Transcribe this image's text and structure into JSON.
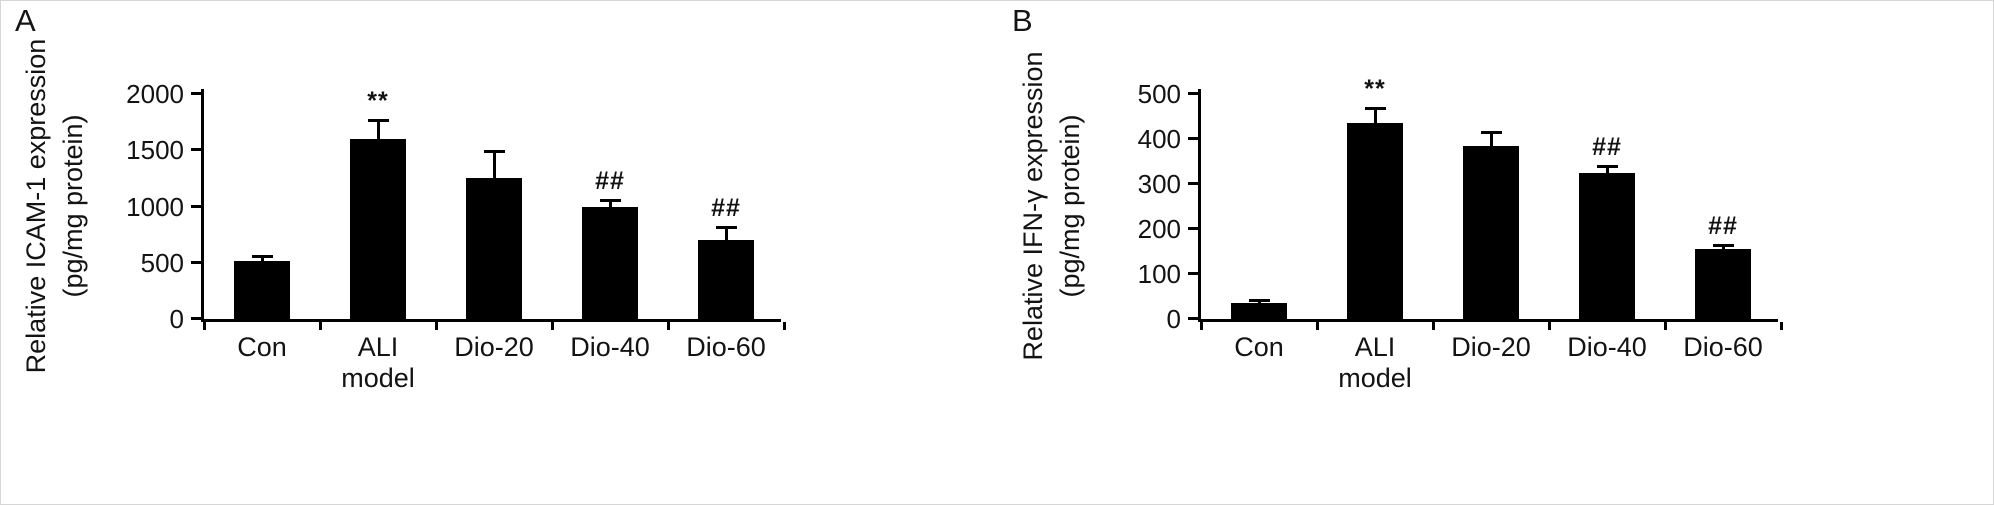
{
  "figure": {
    "background": "#ffffff",
    "axis_color": "#000000",
    "panels": [
      {
        "label": "A",
        "ylabel_lines": [
          "Relative ICAM-1 expression",
          "(pg/mg protein)"
        ]
      },
      {
        "label": "B",
        "ylabel_lines": [
          "Relative IFN-γ expression",
          "(pg/mg protein)"
        ]
      }
    ]
  },
  "chart_data": [
    {
      "type": "bar",
      "panel": "A",
      "title": "",
      "ylabel": "Relative ICAM-1 expression (pg/mg protein)",
      "xlabel": "",
      "categories": [
        "Con",
        "ALI model",
        "Dio-20",
        "Dio-40",
        "Dio-60"
      ],
      "values": [
        520,
        1600,
        1250,
        1000,
        700
      ],
      "errors_upper": [
        40,
        170,
        240,
        60,
        120
      ],
      "significance": [
        "",
        "**",
        "",
        "##",
        "##"
      ],
      "ylim": [
        0,
        2000
      ],
      "yticks": [
        0,
        500,
        1000,
        1500,
        2000
      ],
      "bar_color": "#000000",
      "grid": false,
      "legend": false
    },
    {
      "type": "bar",
      "panel": "B",
      "title": "",
      "ylabel": "Relative IFN-γ expression (pg/mg protein)",
      "xlabel": "",
      "categories": [
        "Con",
        "ALI model",
        "Dio-20",
        "Dio-40",
        "Dio-60"
      ],
      "values": [
        35,
        435,
        385,
        325,
        155
      ],
      "errors_upper": [
        8,
        35,
        30,
        15,
        10
      ],
      "significance": [
        "",
        "**",
        "",
        "##",
        "##"
      ],
      "ylim": [
        0,
        500
      ],
      "yticks": [
        0,
        100,
        200,
        300,
        400,
        500
      ],
      "bar_color": "#000000",
      "grid": false,
      "legend": false
    }
  ]
}
